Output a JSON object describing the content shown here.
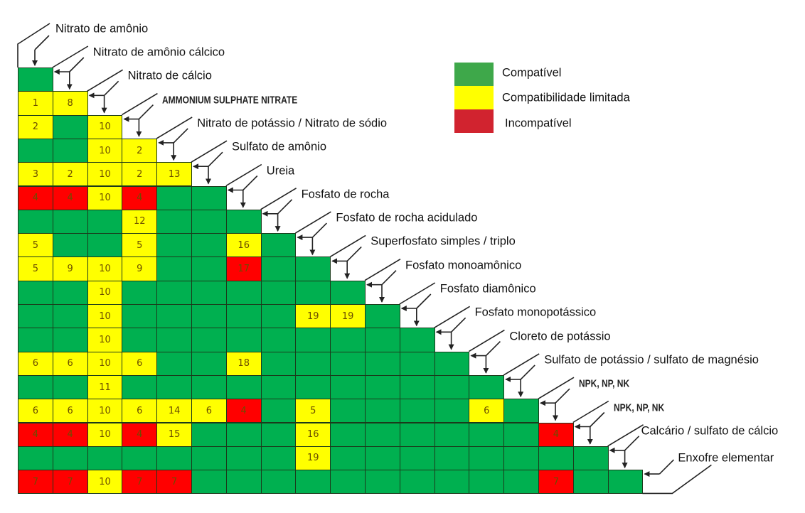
{
  "chart_data": {
    "type": "heatmap",
    "title": "",
    "products": [
      {
        "label": "Nitrato de amônio",
        "bold": false
      },
      {
        "label": "Nitrato de amônio cálcico",
        "bold": false
      },
      {
        "label": "Nitrato de cálcio",
        "bold": false
      },
      {
        "label": "AMMONIUM SULPHATE NITRATE",
        "bold": true
      },
      {
        "label": "Nitrato de potássio / Nitrato de sódio",
        "bold": false
      },
      {
        "label": "Sulfato de amônio",
        "bold": false
      },
      {
        "label": "Ureia",
        "bold": false
      },
      {
        "label": "Fosfato de rocha",
        "bold": false
      },
      {
        "label": "Fosfato de rocha acidulado",
        "bold": false
      },
      {
        "label": "Superfosfato simples / triplo",
        "bold": false
      },
      {
        "label": "Fosfato monoamônico",
        "bold": false
      },
      {
        "label": "Fosfato diamônico",
        "bold": false
      },
      {
        "label": "Fosfato monopotássico",
        "bold": false
      },
      {
        "label": "Cloreto de potássio",
        "bold": false
      },
      {
        "label": "Sulfato de potássio / sulfato de magnésio",
        "bold": false
      },
      {
        "label": "NPK, NP, NK",
        "bold": true
      },
      {
        "label": "NPK, NP, NK",
        "bold": true
      },
      {
        "label": "Calcário / sulfato de cálcio",
        "bold": false
      },
      {
        "label": "Enxofre elementar",
        "bold": false
      }
    ],
    "legend": [
      {
        "key": "g",
        "label": "Compatível",
        "color": "#3ea84a"
      },
      {
        "key": "y",
        "label": "Compatibilidade limitada",
        "color": "#ffff00"
      },
      {
        "key": "r",
        "label": "Incompatível",
        "color": "#d1232f"
      }
    ],
    "cell_colors": {
      "g": "#00b050",
      "y": "#ffff00",
      "r": "#ff0000"
    },
    "rows": [
      [
        "g"
      ],
      [
        "y1",
        "y8"
      ],
      [
        "y2",
        "g",
        "y10"
      ],
      [
        "g",
        "g",
        "y10",
        "y2"
      ],
      [
        "y3",
        "y2",
        "y10",
        "y2",
        "y13"
      ],
      [
        "r4",
        "r4",
        "y10",
        "r4",
        "g",
        "g"
      ],
      [
        "g",
        "g",
        "g",
        "y12",
        "g",
        "g",
        "g"
      ],
      [
        "y5",
        "g",
        "g",
        "y5",
        "g",
        "g",
        "y16",
        "g"
      ],
      [
        "y5",
        "y9",
        "y10",
        "y9",
        "g",
        "g",
        "r17",
        "g",
        "g"
      ],
      [
        "g",
        "g",
        "y10",
        "g",
        "g",
        "g",
        "g",
        "g",
        "g",
        "g"
      ],
      [
        "g",
        "g",
        "y10",
        "g",
        "g",
        "g",
        "g",
        "g",
        "y19",
        "y19",
        "g"
      ],
      [
        "g",
        "g",
        "y10",
        "g",
        "g",
        "g",
        "g",
        "g",
        "g",
        "g",
        "g",
        "g"
      ],
      [
        "y6",
        "y6",
        "y10",
        "y6",
        "g",
        "g",
        "y18",
        "g",
        "g",
        "g",
        "g",
        "g",
        "g"
      ],
      [
        "g",
        "g",
        "y11",
        "g",
        "g",
        "g",
        "g",
        "g",
        "g",
        "g",
        "g",
        "g",
        "g",
        "g"
      ],
      [
        "y6",
        "y6",
        "y10",
        "y6",
        "y14",
        "y6",
        "r4",
        "g",
        "y5",
        "g",
        "g",
        "g",
        "g",
        "y6",
        "g"
      ],
      [
        "r4",
        "r4",
        "y10",
        "r4",
        "y15",
        "g",
        "g",
        "g",
        "y16",
        "g",
        "g",
        "g",
        "g",
        "g",
        "g",
        "r4"
      ],
      [
        "g",
        "g",
        "g",
        "g",
        "g",
        "g",
        "g",
        "g",
        "y19",
        "g",
        "g",
        "g",
        "g",
        "g",
        "g",
        "g",
        "g"
      ],
      [
        "r7",
        "r7",
        "y10",
        "r7",
        "r7",
        "g",
        "g",
        "g",
        "g",
        "g",
        "g",
        "g",
        "g",
        "g",
        "g",
        "r7",
        "g",
        "g"
      ]
    ]
  }
}
